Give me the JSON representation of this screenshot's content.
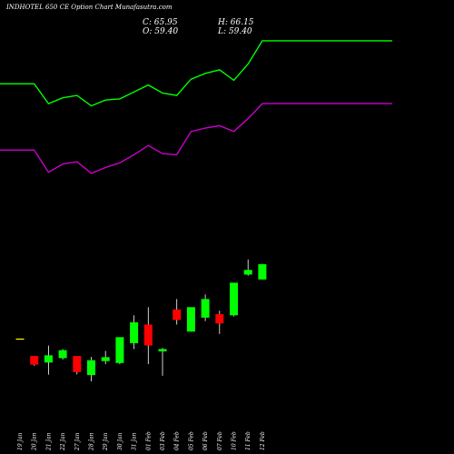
{
  "chart_data": {
    "type": "candlestick",
    "title": "INDHOTEL 650 CE Option Chart Munafasutra.com",
    "ohlc_readout": {
      "close_label": "C:",
      "close": "65.95",
      "high_label": "H:",
      "high": "66.15",
      "open_label": "O:",
      "open": "59.40",
      "low_label": "L:",
      "low": "59.40"
    },
    "categories": [
      "19 Jan",
      "20 Jan",
      "21 Jan",
      "22 Jan",
      "27 Jan",
      "28 Jan",
      "29 Jan",
      "30 Jan",
      "31 Jan",
      "01 Feb",
      "03 Feb",
      "04 Feb",
      "05 Feb",
      "06 Feb",
      "07 Feb",
      "10 Feb",
      "11 Feb",
      "12 Feb"
    ],
    "ylim": [
      0,
      160
    ],
    "candles": [
      {
        "o": 34.0,
        "h": 34.0,
        "l": 33.6,
        "c": 33.8
      },
      {
        "o": 26.5,
        "h": 26.5,
        "l": 22.3,
        "c": 22.8
      },
      {
        "o": 23.7,
        "h": 31.0,
        "l": 18.5,
        "c": 26.8
      },
      {
        "o": 25.6,
        "h": 29.5,
        "l": 25.0,
        "c": 29.0
      },
      {
        "o": 26.5,
        "h": 26.5,
        "l": 18.6,
        "c": 19.6
      },
      {
        "o": 18.3,
        "h": 26.1,
        "l": 15.6,
        "c": 24.7
      },
      {
        "o": 24.3,
        "h": 28.7,
        "l": 23.0,
        "c": 26.0
      },
      {
        "o": 23.5,
        "h": 33.5,
        "l": 23.0,
        "c": 34.6
      },
      {
        "o": 32.0,
        "h": 44.0,
        "l": 29.5,
        "c": 41.0
      },
      {
        "o": 40.0,
        "h": 47.5,
        "l": 23.0,
        "c": 31.0
      },
      {
        "o": 28.5,
        "h": 30.0,
        "l": 18.0,
        "c": 29.5
      },
      {
        "o": 46.5,
        "h": 51.0,
        "l": 40.0,
        "c": 42.0
      },
      {
        "o": 37.0,
        "h": 47.0,
        "l": 37.0,
        "c": 47.5
      },
      {
        "o": 43.0,
        "h": 53.0,
        "l": 41.5,
        "c": 51.0
      },
      {
        "o": 44.5,
        "h": 46.0,
        "l": 36.0,
        "c": 40.5
      },
      {
        "o": 44.0,
        "h": 58.0,
        "l": 43.5,
        "c": 58.0
      },
      {
        "o": 61.5,
        "h": 68.0,
        "l": 61.0,
        "c": 63.5
      },
      {
        "o": 59.4,
        "h": 66.15,
        "l": 59.4,
        "c": 65.95
      }
    ],
    "series": [
      {
        "type": "line",
        "color": "#00ff00",
        "values": [
          143.5,
          143.5,
          135.0,
          137.5,
          138.5,
          134.0,
          136.5,
          137.0,
          140.0,
          143.0,
          139.5,
          138.5,
          145.5,
          148.0,
          149.5,
          145.0,
          152.0,
          162.0
        ]
      },
      {
        "type": "line",
        "color": "#cc00cc",
        "values": [
          115.0,
          115.0,
          105.5,
          109.0,
          110.0,
          105.0,
          107.5,
          109.5,
          113.0,
          117.0,
          113.5,
          113.0,
          123.0,
          124.5,
          125.5,
          123.0,
          128.5,
          135.0
        ]
      }
    ],
    "colors": {
      "up": "#00ff00",
      "down": "#ff0000",
      "flat": "#ffff00",
      "background": "#000000",
      "wick": "#ffffff"
    },
    "grid": false,
    "legend": "none"
  }
}
